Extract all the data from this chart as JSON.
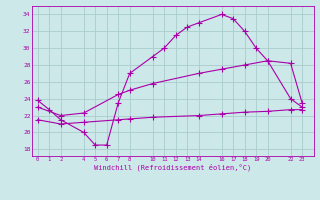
{
  "line1_x": [
    0,
    1,
    2,
    4,
    5,
    6,
    7,
    8,
    10,
    11,
    12,
    13,
    14,
    16,
    17,
    18,
    19,
    20,
    22,
    23
  ],
  "line1_y": [
    23.8,
    22.7,
    21.5,
    20.0,
    18.5,
    18.5,
    23.5,
    27.0,
    29.0,
    30.0,
    31.5,
    32.5,
    33.0,
    34.0,
    33.5,
    32.0,
    30.0,
    28.5,
    24.0,
    23.0
  ],
  "line2_x": [
    0,
    2,
    4,
    7,
    8,
    10,
    14,
    16,
    18,
    20,
    22,
    23
  ],
  "line2_y": [
    23.0,
    22.0,
    22.3,
    24.5,
    25.0,
    25.8,
    27.0,
    27.5,
    28.0,
    28.5,
    28.2,
    23.5
  ],
  "line3_x": [
    0,
    2,
    4,
    7,
    8,
    10,
    14,
    16,
    18,
    20,
    22,
    23
  ],
  "line3_y": [
    21.5,
    21.0,
    21.2,
    21.5,
    21.6,
    21.8,
    22.0,
    22.2,
    22.4,
    22.5,
    22.7,
    22.7
  ],
  "color": "#aa00aa",
  "bg_color": "#cce8e8",
  "grid_color": "#aacccc",
  "xlabel": "Windchill (Refroidissement éolien,°C)",
  "xticks": [
    0,
    1,
    2,
    4,
    5,
    6,
    7,
    8,
    10,
    11,
    12,
    13,
    14,
    16,
    17,
    18,
    19,
    20,
    22,
    23
  ],
  "yticks": [
    18,
    20,
    22,
    24,
    26,
    28,
    30,
    32,
    34
  ],
  "xlim": [
    -0.5,
    24.0
  ],
  "ylim": [
    17.2,
    35.0
  ],
  "marker": "+",
  "markersize": 4,
  "linewidth": 0.8
}
